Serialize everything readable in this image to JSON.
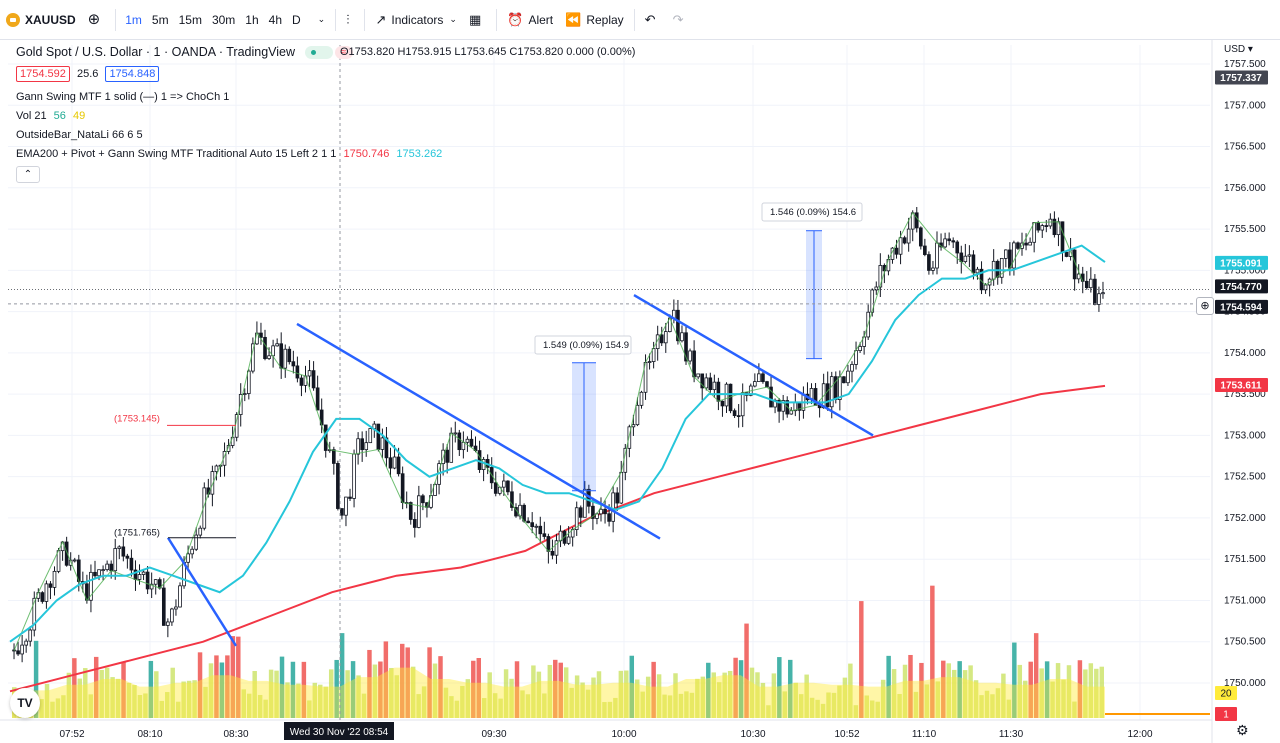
{
  "toolbar": {
    "symbol": "XAUUSD",
    "intervals": [
      "1m",
      "5m",
      "15m",
      "30m",
      "1h",
      "4h",
      "D"
    ],
    "active_interval": "1m",
    "indicators_label": "Indicators",
    "alert_label": "Alert",
    "replay_label": "Replay"
  },
  "legend": {
    "title": "Gold Spot / U.S. Dollar · 1 · OANDA · TradingView",
    "ohlc": "O1753.820 H1753.915 L1753.645 C1753.820 0.000 (0.00%)",
    "bid": "1754.592",
    "spread": "25.6",
    "ask": "1754.848",
    "indicator1": "Gann Swing MTF 1 solid (—) 1 => ChoCh 1",
    "vol_label": "Vol 21",
    "vol_v1": "56",
    "vol_v2": "49",
    "indicator3": "OutsideBar_NataLi 66 6 5",
    "indicator4": "EMA200 + Pivot + Gann Swing MTF Traditional Auto 15 Left 2 1 1",
    "ema_v1": "1750.746",
    "ema_v2": "1753.262"
  },
  "axis": {
    "currency": "USD",
    "price_ticks": [
      "1757.500",
      "1757.000",
      "1756.500",
      "1756.000",
      "1755.500",
      "1755.000",
      "1754.500",
      "1754.000",
      "1753.500",
      "1753.000",
      "1752.500",
      "1752.000",
      "1751.500",
      "1751.000",
      "1750.500",
      "1750.000"
    ],
    "time_ticks": [
      "07:52",
      "08:10",
      "08:30",
      "09:30",
      "10:00",
      "10:30",
      "10:52",
      "11:10",
      "11:30",
      "12:00"
    ],
    "crosshair_time": "Wed 30 Nov '22   08:54"
  },
  "price_labels": [
    {
      "text": "1757.337",
      "price": 1757.337,
      "bg": "#434651"
    },
    {
      "text": "1755.091",
      "price": 1755.091,
      "bg": "#26c6da"
    },
    {
      "text": "1754.770",
      "price": 1754.77,
      "bg": "#131722"
    },
    {
      "text": "1754.594",
      "price": 1754.594,
      "bg": "#131722"
    },
    {
      "text": "1753.611",
      "price": 1753.611,
      "bg": "#f23645"
    }
  ],
  "vol_labels": [
    {
      "text": "20",
      "bg": "#ffeb3b",
      "color": "#131722"
    },
    {
      "text": "1",
      "bg": "#f23645",
      "color": "#ffffff"
    }
  ],
  "annotations": {
    "level_a": "(1753.145)",
    "level_b": "(1751.765)",
    "measure1": "1.549 (0.09%) 154.9",
    "measure2": "1.546 (0.09%) 154.6"
  },
  "colors": {
    "up": "#26a69a",
    "down": "#ef5350",
    "candle": "#131722",
    "ema_fast": "#26c6da",
    "ema200": "#f23645",
    "trendline": "#2962ff",
    "gann": "#4caf50",
    "volume_ma": "#ffeb3b"
  },
  "chart_data": {
    "type": "candlestick",
    "symbol": "XAUUSD",
    "interval": "1m",
    "ylim": [
      1749.7,
      1757.65
    ],
    "x_ticks": [
      "07:52",
      "08:10",
      "08:30",
      "09:30",
      "10:00",
      "10:30",
      "10:52",
      "11:10",
      "11:30",
      "12:00"
    ],
    "close_path": [
      1750.4,
      1750.8,
      1751.3,
      1751.6,
      1751.1,
      1751.3,
      1751.6,
      1751.4,
      1751.2,
      1750.7,
      1751.5,
      1752.2,
      1752.6,
      1753.4,
      1754.2,
      1754.0,
      1753.9,
      1753.7,
      1753.0,
      1752.0,
      1752.9,
      1753.0,
      1752.6,
      1752.0,
      1752.3,
      1752.8,
      1753.0,
      1752.6,
      1752.4,
      1752.2,
      1752.0,
      1751.5,
      1751.9,
      1752.2,
      1752.0,
      1752.3,
      1753.5,
      1753.9,
      1754.6,
      1753.9,
      1753.7,
      1753.5,
      1753.3,
      1753.6,
      1753.4,
      1753.3,
      1753.5,
      1753.5,
      1753.7,
      1754.2,
      1754.9,
      1755.3,
      1755.6,
      1755.0,
      1755.4,
      1755.2,
      1754.9,
      1755.1,
      1755.2,
      1755.4,
      1755.7,
      1755.2,
      1754.8,
      1754.6
    ],
    "ema_fast_path": [
      1750.5,
      1750.7,
      1751.0,
      1751.2,
      1751.3,
      1751.3,
      1751.4,
      1751.3,
      1751.2,
      1751.1,
      1751.3,
      1751.7,
      1752.2,
      1752.8,
      1753.2,
      1753.2,
      1753.0,
      1752.7,
      1752.5,
      1752.6,
      1752.7,
      1752.6,
      1752.4,
      1752.3,
      1752.3,
      1752.2,
      1752.1,
      1752.2,
      1752.6,
      1753.2,
      1753.5,
      1753.5,
      1753.5,
      1753.4,
      1753.4,
      1753.4,
      1753.5,
      1753.9,
      1754.4,
      1754.7,
      1754.9,
      1754.9,
      1755.0,
      1755.0,
      1755.1,
      1755.2,
      1755.3,
      1755.1
    ],
    "ema200_path": [
      1749.9,
      1750.1,
      1750.3,
      1750.5,
      1750.8,
      1751.1,
      1751.3,
      1751.4,
      1751.6,
      1752.0,
      1752.3,
      1752.5,
      1752.7,
      1752.9,
      1753.1,
      1753.3,
      1753.5,
      1753.6
    ],
    "volume_levels": [
      0.2,
      0.35,
      0.5,
      0.3,
      0.4,
      0.6,
      0.45,
      0.35,
      0.3,
      0.55,
      0.8,
      0.5,
      0.4,
      0.3,
      0.45,
      0.35,
      0.4,
      0.3,
      0.5,
      0.6,
      0.3,
      0.4,
      0.35,
      0.3,
      0.45,
      0.55,
      0.4,
      0.35,
      0.5,
      0.3
    ],
    "trendlines": [
      {
        "from": [
          1751.76,
          "08:10"
        ],
        "to": [
          1750.45,
          "08:30"
        ]
      },
      {
        "from": [
          1754.35,
          "08:35"
        ],
        "to": [
          1751.75,
          "09:55"
        ]
      },
      {
        "from": [
          1754.7,
          "10:00"
        ],
        "to": [
          1753.0,
          "10:55"
        ]
      }
    ],
    "measures": [
      {
        "label": "1.549 (0.09%) 154.9",
        "from": 1752.33,
        "to": 1753.88
      },
      {
        "label": "1.546 (0.09%) 154.6",
        "from": 1753.93,
        "to": 1755.48
      }
    ]
  }
}
